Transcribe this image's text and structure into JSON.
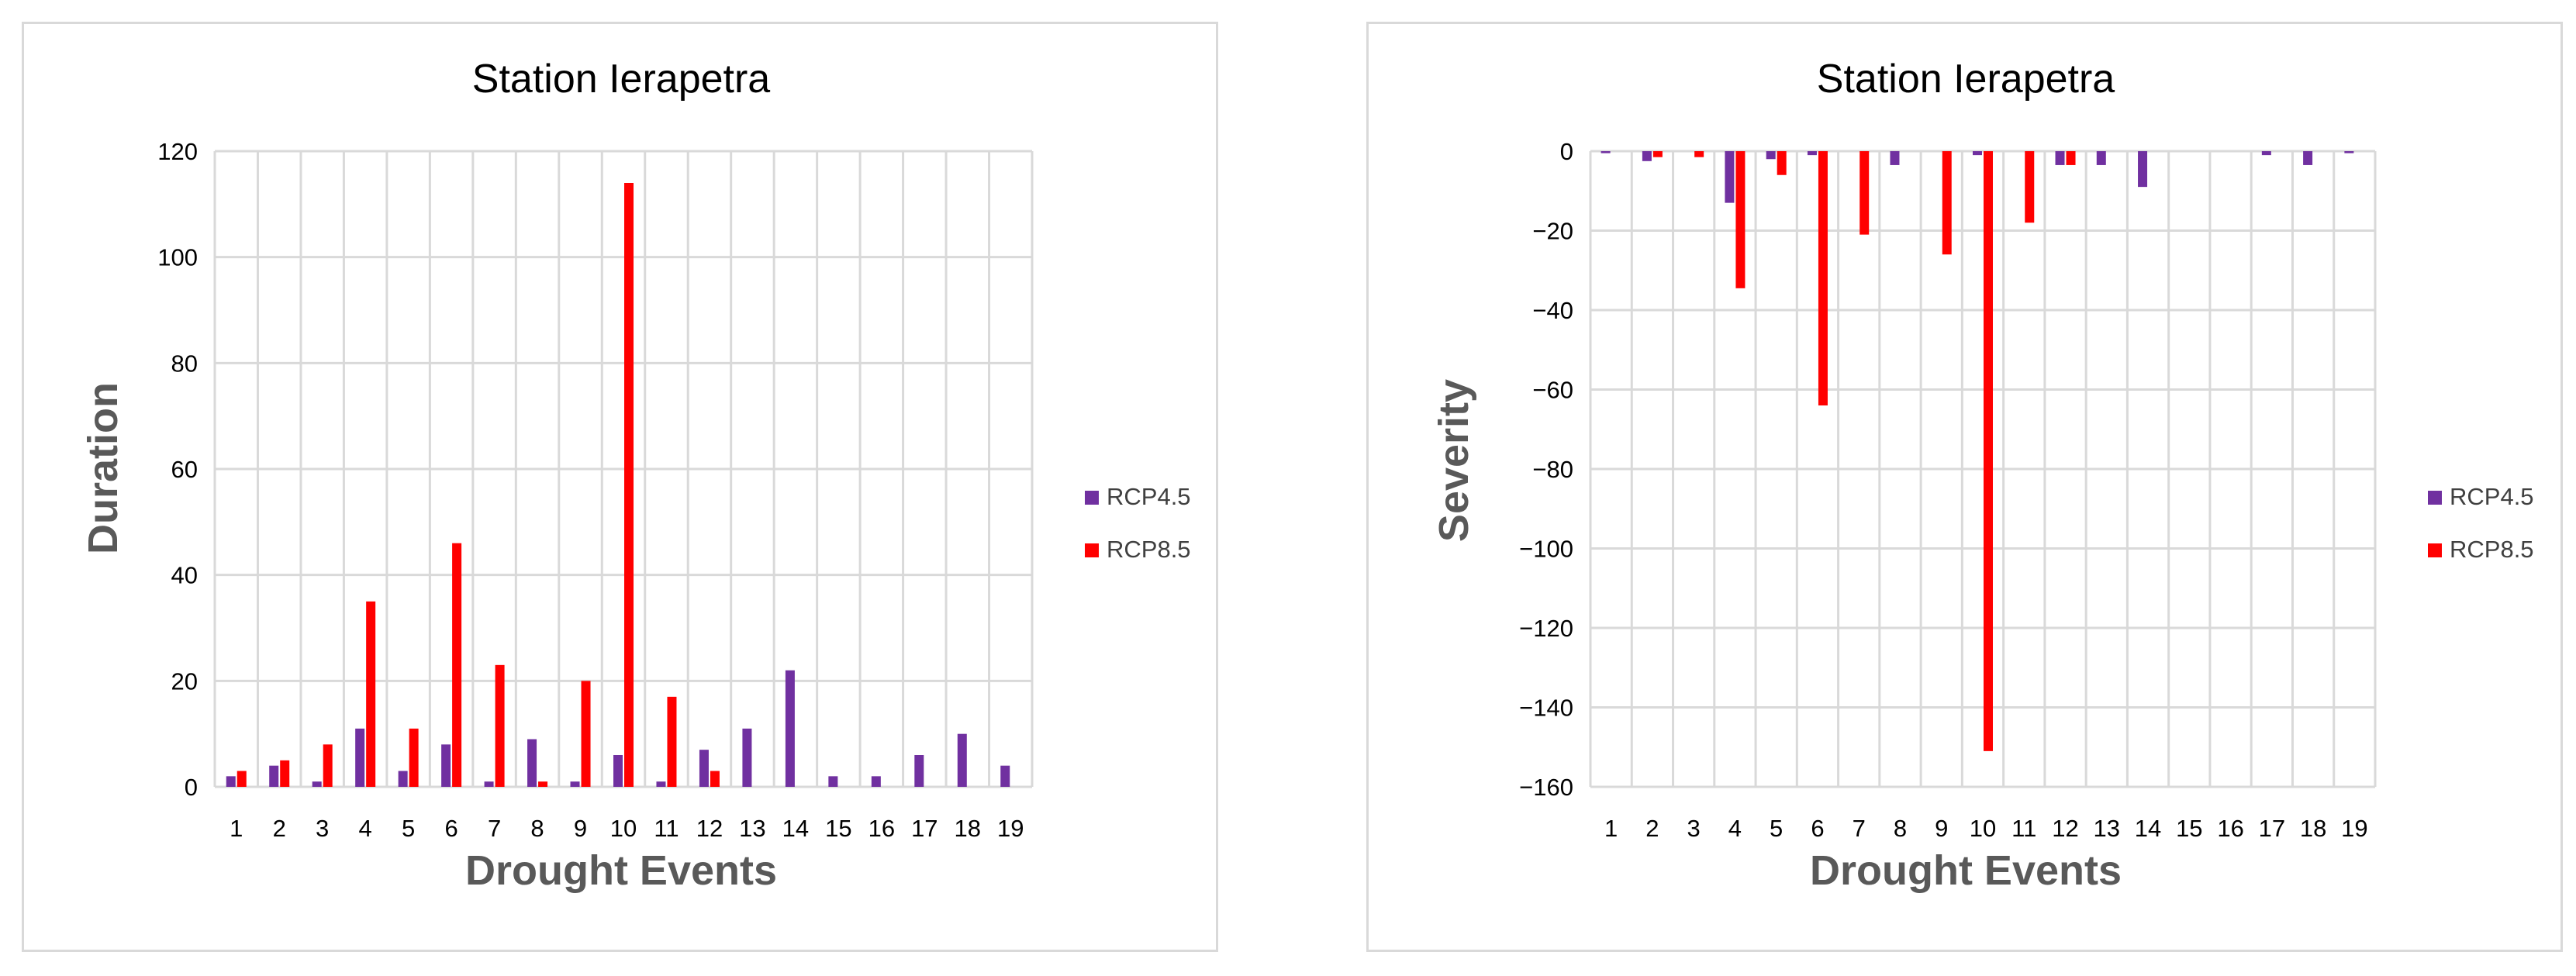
{
  "colors": {
    "rcp45": "#7030a0",
    "rcp85": "#ff0000",
    "grid": "#d9d9d9",
    "axis_title": "#595959"
  },
  "chart_data": [
    {
      "type": "bar",
      "title": "Station Ierapetra",
      "xlabel": "Drought Events",
      "ylabel": "Duration",
      "ylim": [
        0,
        120
      ],
      "yticks": [
        0,
        20,
        40,
        60,
        80,
        100,
        120
      ],
      "grid": true,
      "legend_position": "right",
      "categories": [
        "1",
        "2",
        "3",
        "4",
        "5",
        "6",
        "7",
        "8",
        "9",
        "10",
        "11",
        "12",
        "13",
        "14",
        "15",
        "16",
        "17",
        "18",
        "19"
      ],
      "series": [
        {
          "name": "RCP4.5",
          "values": [
            2,
            4,
            1,
            11,
            3,
            8,
            1,
            9,
            1,
            6,
            1,
            7,
            11,
            22,
            2,
            2,
            6,
            10,
            4
          ]
        },
        {
          "name": "RCP8.5",
          "values": [
            3,
            5,
            8,
            35,
            11,
            46,
            23,
            1,
            20,
            114,
            17,
            3,
            0,
            0,
            0,
            0,
            0,
            0,
            0
          ]
        }
      ]
    },
    {
      "type": "bar",
      "title": "Station Ierapetra",
      "xlabel": "Drought Events",
      "ylabel": "Severity",
      "ylim": [
        -160,
        0
      ],
      "yticks": [
        0,
        -20,
        -40,
        -60,
        -80,
        -100,
        -120,
        -140,
        -160
      ],
      "grid": true,
      "legend_position": "right",
      "categories": [
        "1",
        "2",
        "3",
        "4",
        "5",
        "6",
        "7",
        "8",
        "9",
        "10",
        "11",
        "12",
        "13",
        "14",
        "15",
        "16",
        "17",
        "18",
        "19"
      ],
      "series": [
        {
          "name": "RCP4.5",
          "values": [
            -0.5,
            -2.5,
            0,
            -13,
            -2,
            -1,
            0,
            -3.5,
            0,
            -1,
            0,
            -3.5,
            -3.5,
            -9,
            0,
            0,
            -1,
            -3.5,
            -0.5
          ]
        },
        {
          "name": "RCP8.5",
          "values": [
            0,
            -1.5,
            -1.5,
            -34.5,
            -6,
            -64,
            -21,
            0,
            -26,
            -151,
            -18,
            -3.5,
            0,
            0,
            0,
            0,
            0,
            0,
            0
          ]
        }
      ]
    }
  ]
}
